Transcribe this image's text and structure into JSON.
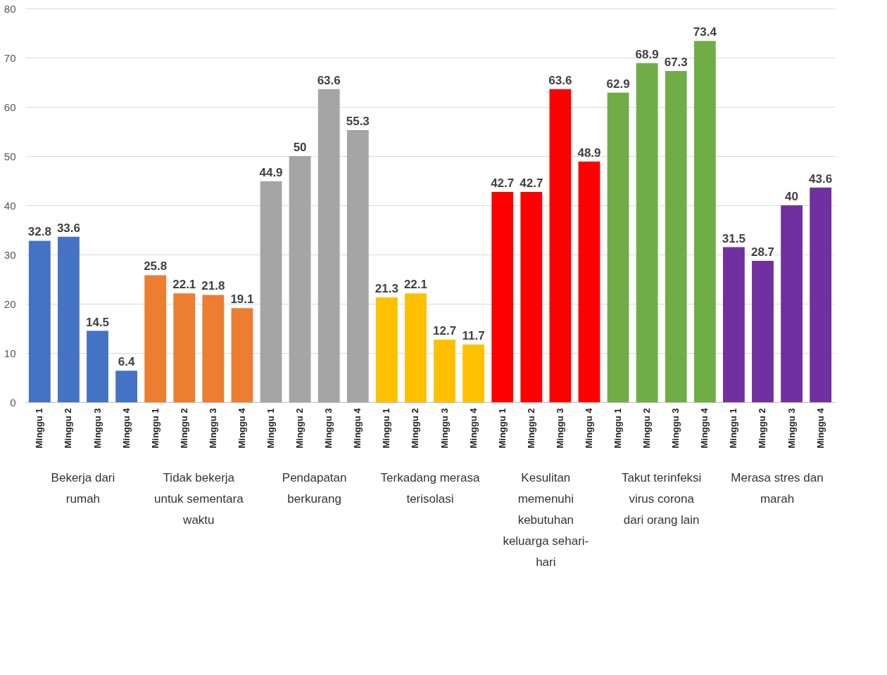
{
  "chart_data": {
    "type": "bar",
    "categories": [
      "Minggu 1",
      "Minggu 2",
      "Minggu 3",
      "Minggu 4",
      "Minggu 1",
      "Minggu 2",
      "Minggu 3",
      "Minggu 4",
      "Minggu 1",
      "Minggu 2",
      "Minggu 3",
      "Minggu 4",
      "Minggu 1",
      "Minggu 2",
      "Minggu 3",
      "Minggu 4",
      "Minggu 1",
      "Minggu 2",
      "Minggu 3",
      "Minggu 4",
      "Minggu 1",
      "Minggu 2",
      "Minggu 3",
      "Minggu 4",
      "Minggu 1",
      "Minggu 2",
      "Minggu 3",
      "Minggu 4"
    ],
    "values": [
      32.8,
      33.6,
      14.5,
      6.4,
      25.8,
      22.1,
      21.8,
      19.1,
      44.9,
      50,
      63.6,
      55.3,
      21.3,
      22.1,
      12.7,
      11.7,
      42.7,
      42.7,
      63.6,
      48.9,
      62.9,
      68.9,
      67.3,
      73.4,
      31.5,
      28.7,
      40,
      43.6
    ],
    "colors": [
      "#4472c4",
      "#4472c4",
      "#4472c4",
      "#4472c4",
      "#ed7d31",
      "#ed7d31",
      "#ed7d31",
      "#ed7d31",
      "#a5a5a5",
      "#a5a5a5",
      "#a5a5a5",
      "#a5a5a5",
      "#ffc000",
      "#ffc000",
      "#ffc000",
      "#ffc000",
      "#ff0000",
      "#ff0000",
      "#ff0000",
      "#ff0000",
      "#70ad47",
      "#70ad47",
      "#70ad47",
      "#70ad47",
      "#7030a0",
      "#7030a0",
      "#7030a0",
      "#7030a0"
    ],
    "annotations": [
      "Bekerja dari rumah",
      "Tidak bekerja untuk sementara waktu",
      "Pendapatan berkurang",
      "Terkadang merasa terisolasi",
      "Kesulitan memenuhi kebutuhan keluarga sehari-hari",
      "Takut terinfeksi virus corona dari orang lain",
      "Merasa stres dan marah"
    ],
    "ylim": [
      0,
      80
    ],
    "yticks": [
      0,
      10,
      20,
      30,
      40,
      50,
      60,
      70,
      80
    ],
    "grid": "y",
    "data_labels": true
  }
}
